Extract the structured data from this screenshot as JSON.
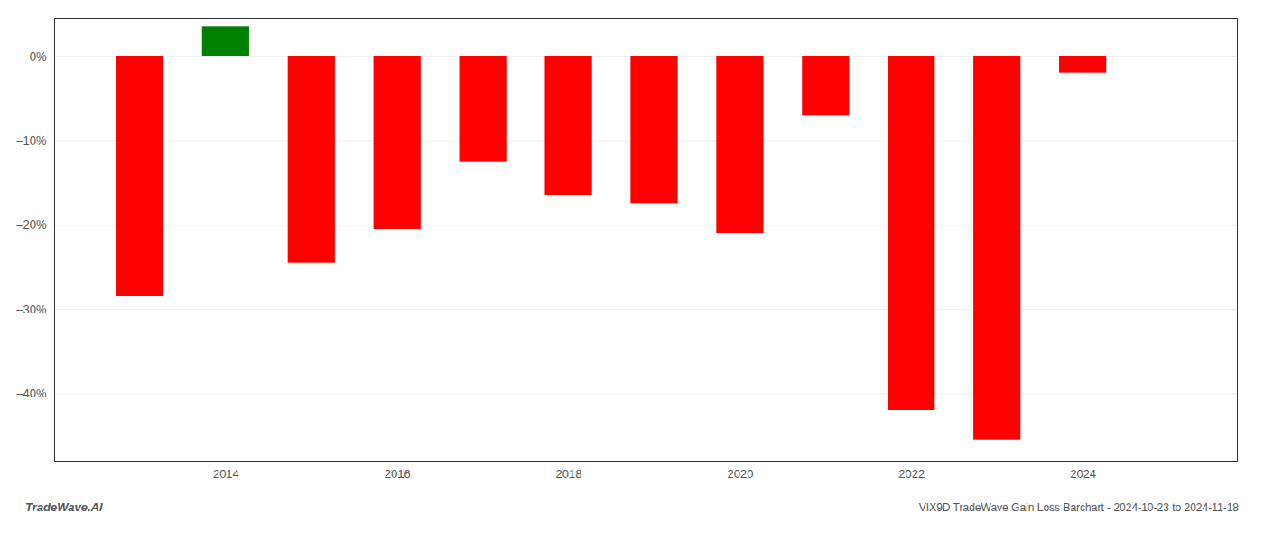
{
  "chart_data": {
    "type": "bar",
    "title": "VIX9D TradeWave Gain Loss Barchart - 2024-10-23 to 2024-11-18",
    "annotations": [
      "TradeWave.AI"
    ],
    "x": [
      2013,
      2014,
      2015,
      2016,
      2017,
      2018,
      2019,
      2020,
      2021,
      2022,
      2023,
      2024
    ],
    "values": [
      -28.5,
      3.5,
      -24.5,
      -20.5,
      -12.5,
      -16.5,
      -17.5,
      -21.0,
      -7.0,
      -42.0,
      -45.5,
      -2.0
    ],
    "colors": [
      "#ff0000",
      "#008000",
      "#ff0000",
      "#ff0000",
      "#ff0000",
      "#ff0000",
      "#ff0000",
      "#ff0000",
      "#ff0000",
      "#ff0000",
      "#ff0000",
      "#ff0000"
    ],
    "xlim": [
      2012.0,
      2025.8
    ],
    "xticks": [
      2014,
      2016,
      2018,
      2020,
      2022,
      2024
    ],
    "ylim": [
      -48,
      4.5
    ],
    "yticks": [
      {
        "value": 0,
        "label": "0%"
      },
      {
        "value": -10,
        "label": "–10%"
      },
      {
        "value": -20,
        "label": "–20%"
      },
      {
        "value": -30,
        "label": "–30%"
      },
      {
        "value": -40,
        "label": "–40%"
      }
    ],
    "grid": true
  }
}
